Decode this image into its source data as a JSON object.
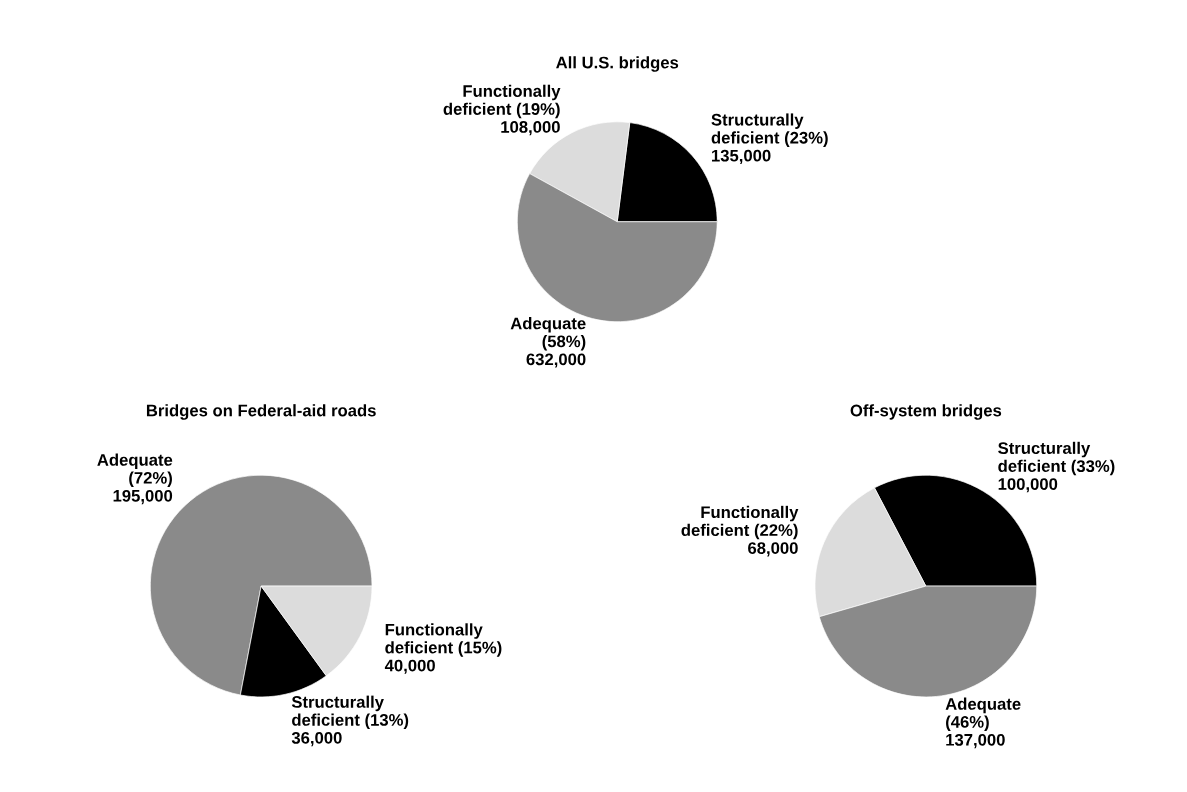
{
  "chart_data": [
    {
      "type": "pie",
      "title": "All U.S. bridges",
      "categories": [
        "Structurally deficient (23%)",
        "Functionally deficient (19%)",
        "Adequate (58%)"
      ],
      "values": [
        23,
        19,
        58
      ],
      "annotations": [
        "135,000",
        "108,000",
        "632,000"
      ],
      "colors": [
        "#000000",
        "#dcdcdc",
        "#8a8a8a"
      ]
    },
    {
      "type": "pie",
      "title": "Bridges on Federal-aid roads",
      "categories": [
        "Adequate (72%)",
        "Structurally deficient (13%)",
        "Functionally deficient (15%)"
      ],
      "values": [
        72,
        13,
        15
      ],
      "annotations": [
        "195,000",
        "36,000",
        "40,000"
      ],
      "colors": [
        "#8a8a8a",
        "#000000",
        "#dcdcdc"
      ]
    },
    {
      "type": "pie",
      "title": "Off-system bridges",
      "categories": [
        "Structurally deficient (33%)",
        "Functionally deficient (22%)",
        "Adequate (46%)"
      ],
      "values": [
        33,
        22,
        46
      ],
      "annotations": [
        "100,000",
        "68,000",
        "137,000"
      ],
      "colors": [
        "#000000",
        "#dcdcdc",
        "#8a8a8a"
      ]
    }
  ]
}
